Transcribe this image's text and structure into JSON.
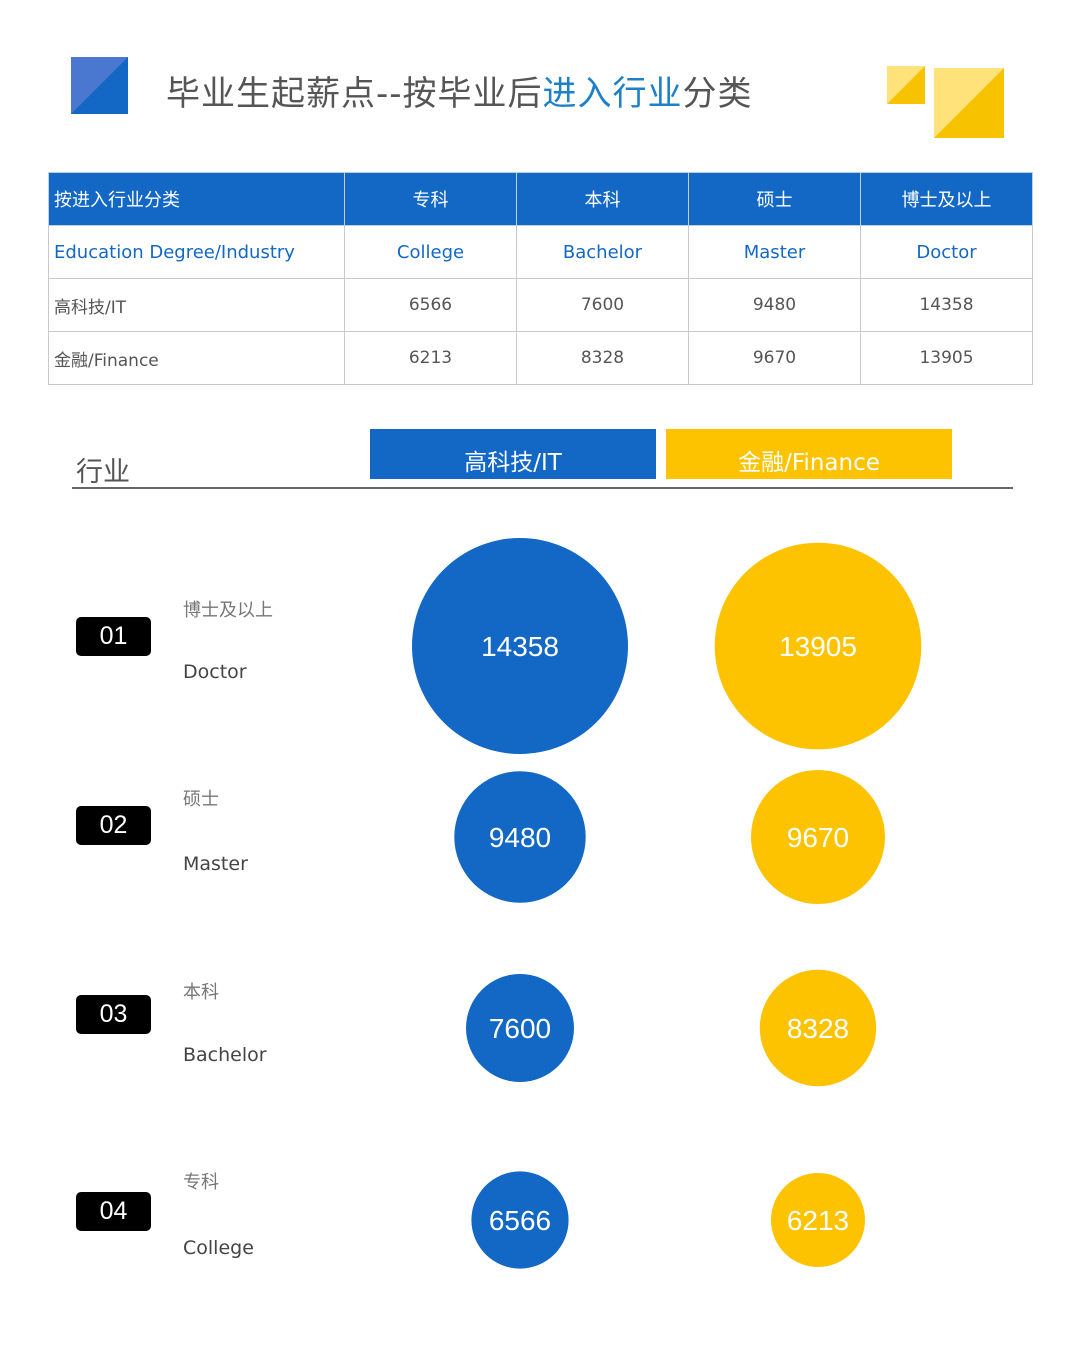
{
  "header": {
    "title_prefix": "毕业生起薪点--按毕业后",
    "title_highlight": "进入行业",
    "title_suffix": "分类"
  },
  "table": {
    "header_row": [
      "按进入行业分类",
      "专科",
      "本科",
      "硕士",
      "博士及以上"
    ],
    "english_row": [
      "Education Degree/Industry",
      "College",
      "Bachelor",
      "Master",
      "Doctor"
    ],
    "rows": [
      [
        "高科技/IT",
        "6566",
        "7600",
        "9480",
        "14358"
      ],
      [
        "金融/Finance",
        "6213",
        "8328",
        "9670",
        "13905"
      ]
    ]
  },
  "chart_header": {
    "axis_label": "行业",
    "legend_it": "高科技/IT",
    "legend_finance": "金融/Finance"
  },
  "colors": {
    "it": "#1268c4",
    "finance": "#fdc300"
  },
  "chart_data": {
    "type": "bubble",
    "series": [
      {
        "name": "高科技/IT",
        "values": [
          14358,
          9480,
          7600,
          6566
        ]
      },
      {
        "name": "金融/Finance",
        "values": [
          13905,
          9670,
          8328,
          6213
        ]
      }
    ],
    "categories": [
      {
        "number": "01",
        "cn": "博士及以上",
        "en": "Doctor"
      },
      {
        "number": "02",
        "cn": "硕士",
        "en": "Master"
      },
      {
        "number": "03",
        "cn": "本科",
        "en": "Bachelor"
      },
      {
        "number": "04",
        "cn": "专科",
        "en": "College"
      }
    ]
  }
}
